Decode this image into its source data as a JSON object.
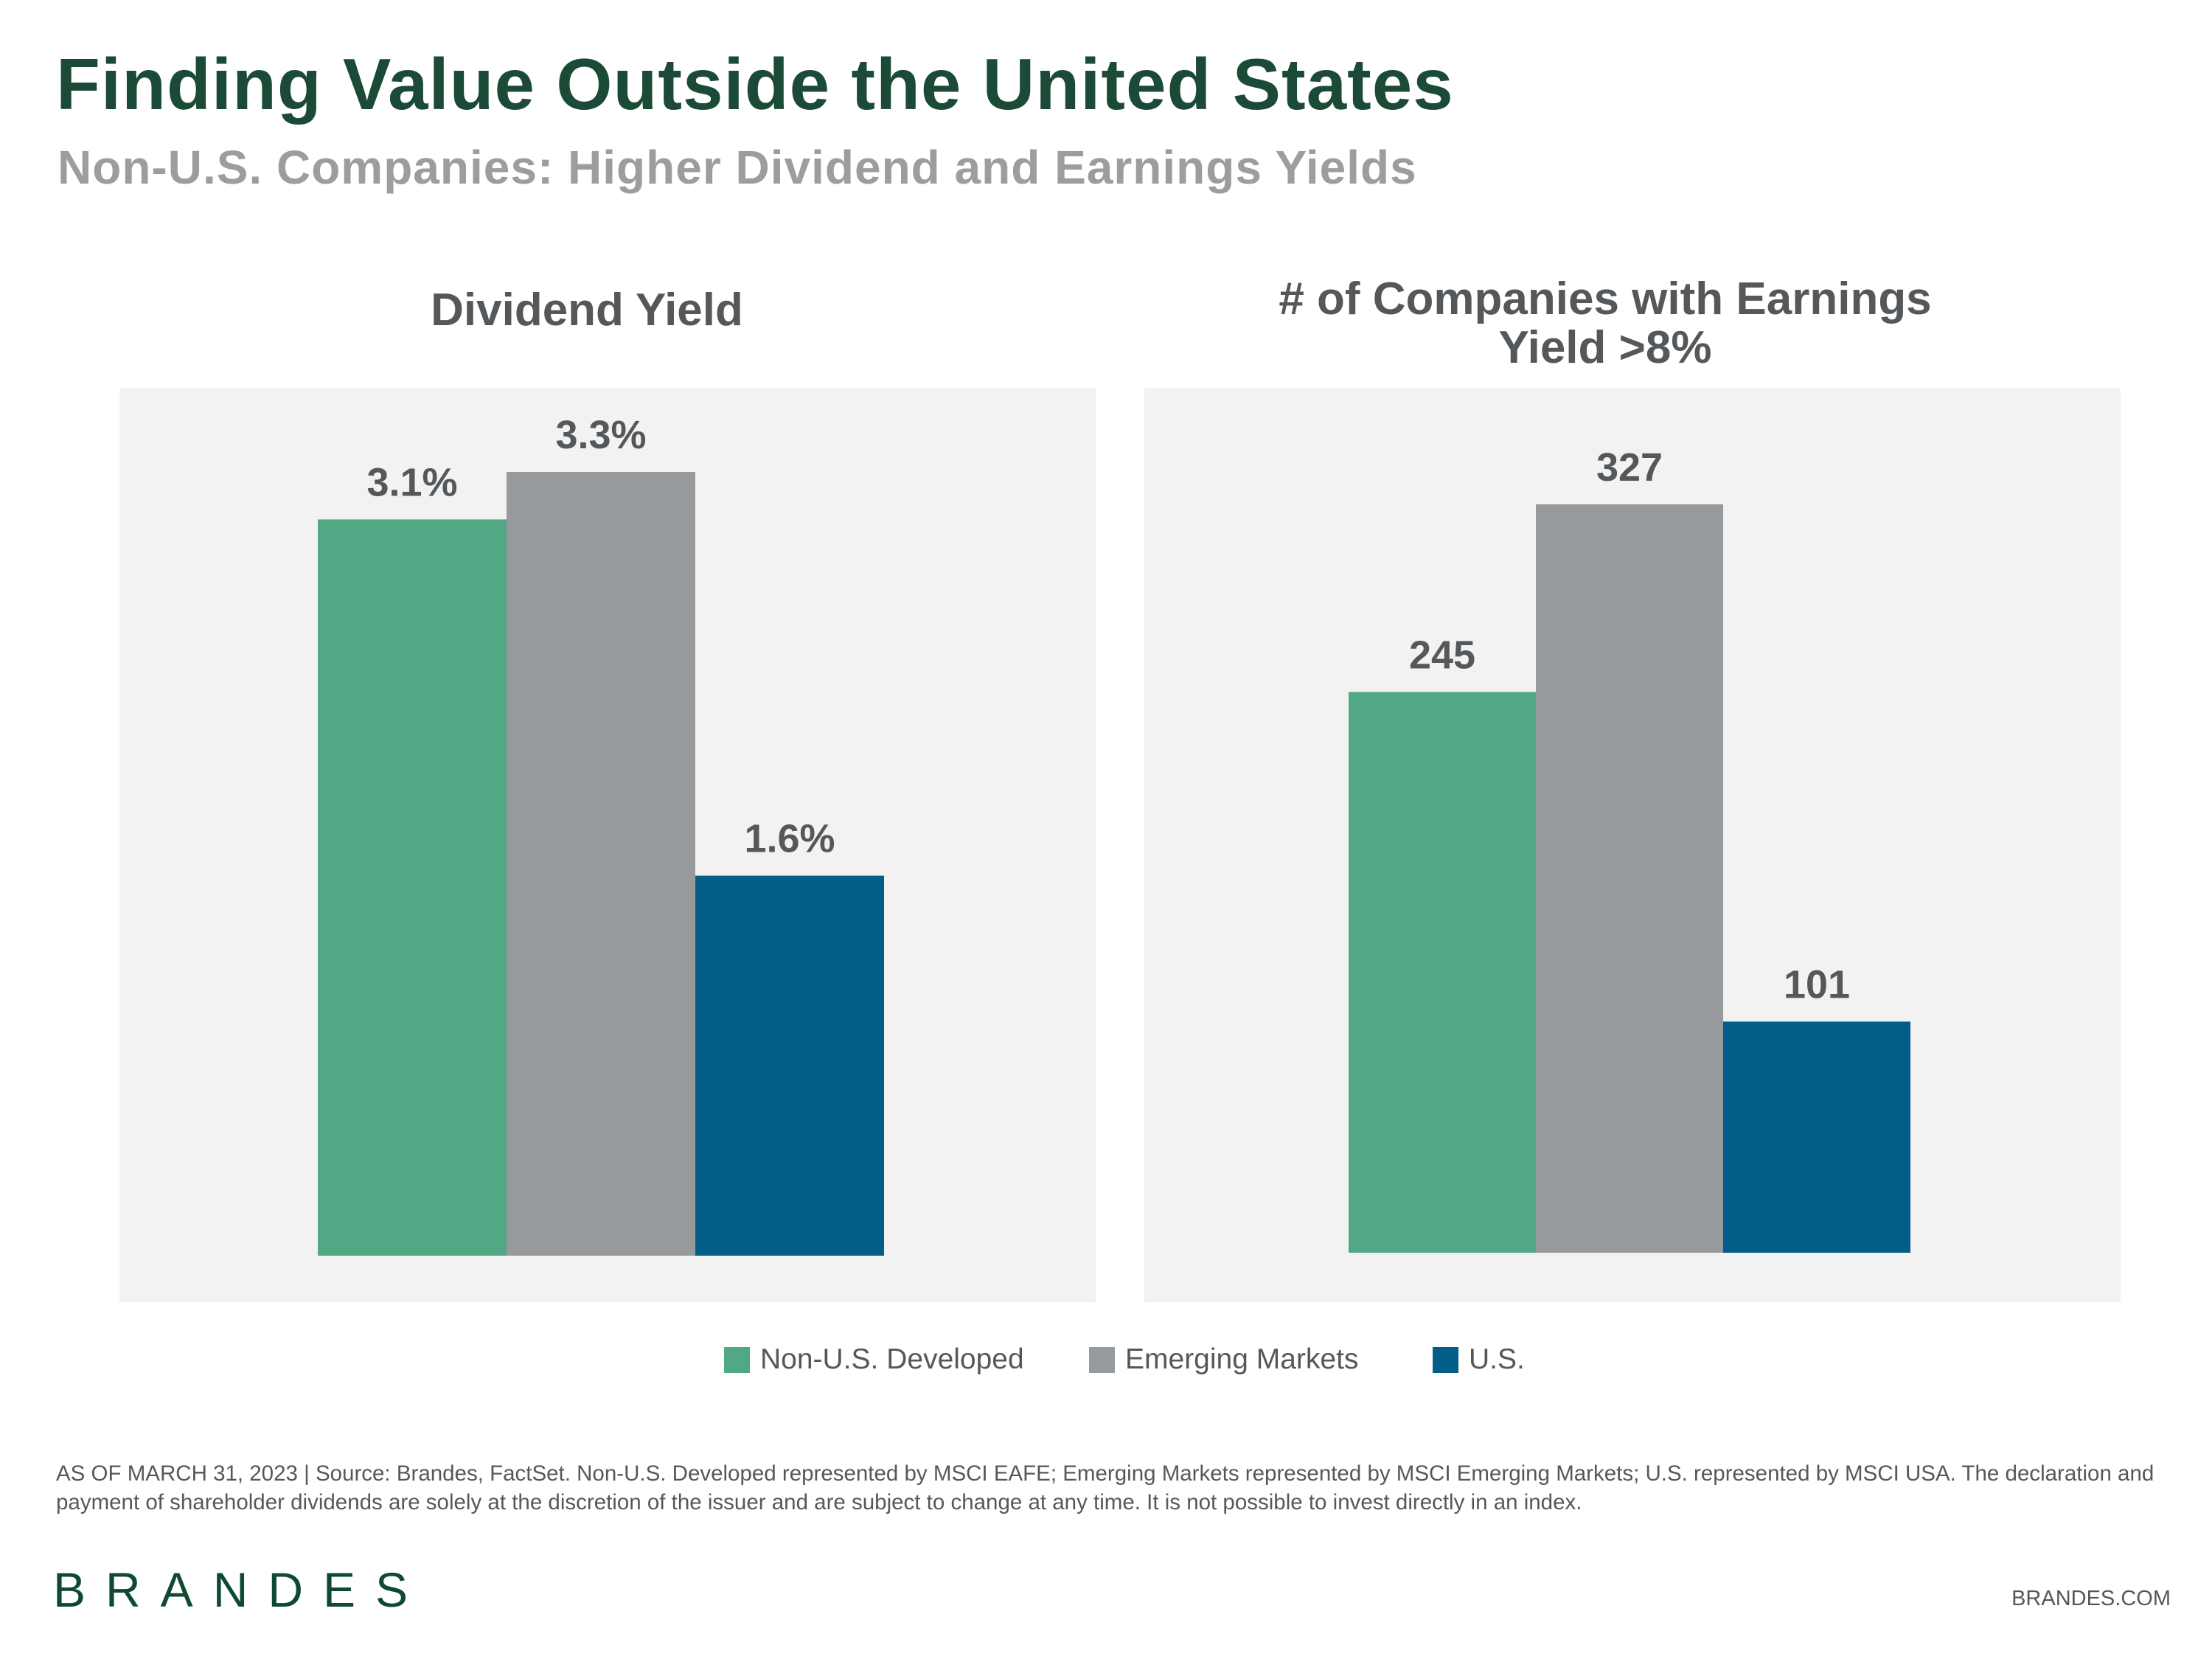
{
  "header": {
    "title": "Finding Value Outside the United States",
    "subtitle": "Non-U.S. Companies: Higher Dividend and Earnings Yields"
  },
  "colors": {
    "non_us_developed": "#52a784",
    "emerging_markets": "#979a9c",
    "us": "#025e86",
    "title": "#1b4a36",
    "panel_background": "#f2f2f2"
  },
  "chart_data": [
    {
      "type": "bar",
      "title": "Dividend Yield",
      "categories": [
        "Non-U.S. Developed",
        "Emerging Markets",
        "U.S."
      ],
      "values": [
        3.1,
        3.3,
        1.6
      ],
      "data_labels": [
        "3.1%",
        "3.3%",
        "1.6%"
      ],
      "unit": "%",
      "ylim": [
        0,
        3.3
      ],
      "grid": false,
      "axes_visible": false
    },
    {
      "type": "bar",
      "title_lines": [
        "# of Companies with Earnings",
        "Yield >8%"
      ],
      "categories": [
        "Non-U.S. Developed",
        "Emerging Markets",
        "U.S."
      ],
      "values": [
        245,
        327,
        101
      ],
      "data_labels": [
        "245",
        "327",
        "101"
      ],
      "ylim": [
        0,
        327
      ],
      "grid": false,
      "axes_visible": false
    }
  ],
  "legend": {
    "placement": "bottom",
    "items": [
      "Non-U.S. Developed",
      "Emerging Markets",
      "U.S."
    ]
  },
  "footer": {
    "note_line1": "AS OF MARCH 31, 2023 | Source: Brandes, FactSet. Non-U.S. Developed represented by MSCI EAFE; Emerging Markets represented by MSCI Emerging Markets; U.S. represented by MSCI USA. The declaration and",
    "note_line2": "payment of shareholder dividends are solely at the discretion of the issuer and are subject to change at any time. It is not possible to invest directly in an index.",
    "logo": "BRANDES",
    "website": "BRANDES.COM"
  }
}
